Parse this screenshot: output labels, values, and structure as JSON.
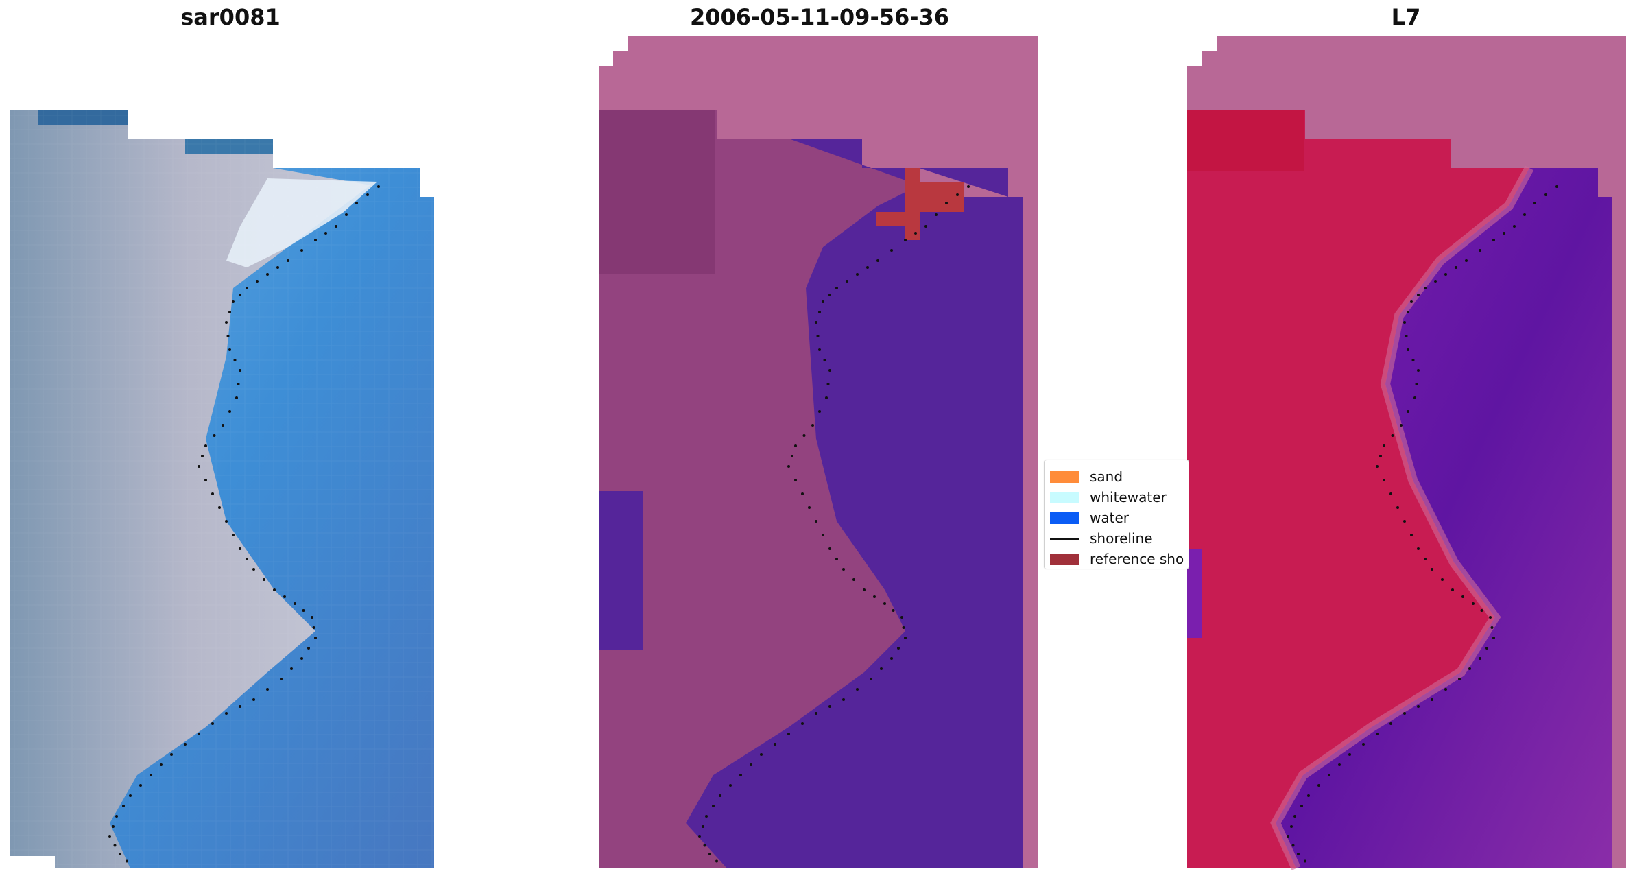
{
  "panels": [
    {
      "title": "sar0081"
    },
    {
      "title": "2006-05-11-09-56-36"
    },
    {
      "title": "L7"
    }
  ],
  "legend": {
    "items": [
      {
        "label": "sand",
        "color": "#ff8c3a",
        "kind": "patch"
      },
      {
        "label": "whitewater",
        "color": "#c8fbff",
        "kind": "patch"
      },
      {
        "label": "water",
        "color": "#0a5cf5",
        "kind": "patch"
      },
      {
        "label": "shoreline",
        "color": "#111111",
        "kind": "line"
      },
      {
        "label": "reference sho",
        "color": "#a0303a",
        "kind": "patch"
      }
    ]
  },
  "colors": {
    "rgb_water": "#3e7fc4",
    "rgb_land": "#a7adc0",
    "class_sand": "#a04a8a",
    "class_water": "#55259a",
    "class_nodata": "#b86896",
    "index_land": "#c81c52",
    "index_water": "#7a22a8",
    "shoreline_dots": "#111111"
  }
}
